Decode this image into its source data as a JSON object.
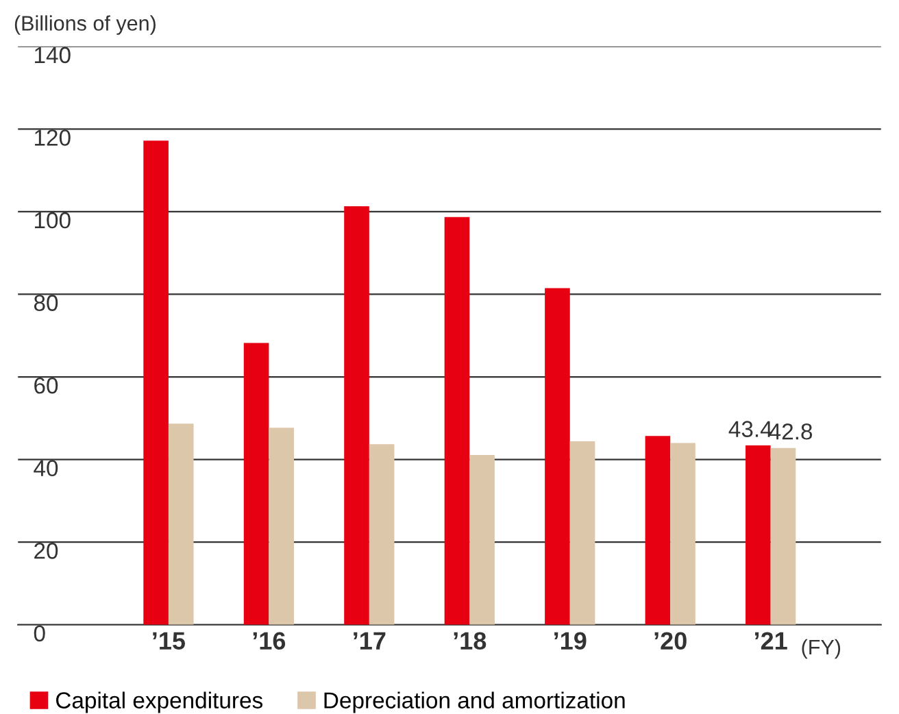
{
  "chart_data": {
    "type": "bar",
    "ylabel": "(Billions of yen)",
    "xlabel": "(FY)",
    "categories": [
      "’15",
      "’16",
      "’17",
      "’18",
      "’19",
      "’20",
      "’21"
    ],
    "series": [
      {
        "name": "Capital expenditures",
        "color": "#e60012",
        "values": [
          117.2,
          68.2,
          101.3,
          98.7,
          81.5,
          45.7,
          43.4
        ],
        "value_labels": [
          null,
          null,
          null,
          null,
          null,
          null,
          "43.4"
        ]
      },
      {
        "name": "Depreciation and amortization",
        "color": "#dcc7aa",
        "values": [
          48.7,
          47.7,
          43.7,
          41.1,
          44.4,
          44.0,
          42.8
        ],
        "value_labels": [
          null,
          null,
          null,
          null,
          null,
          null,
          "42.8"
        ]
      }
    ],
    "ylim": [
      0,
      140
    ],
    "yticks": [
      0,
      20,
      40,
      60,
      80,
      100,
      120,
      140
    ],
    "grid": "y",
    "legend": "bottom"
  }
}
